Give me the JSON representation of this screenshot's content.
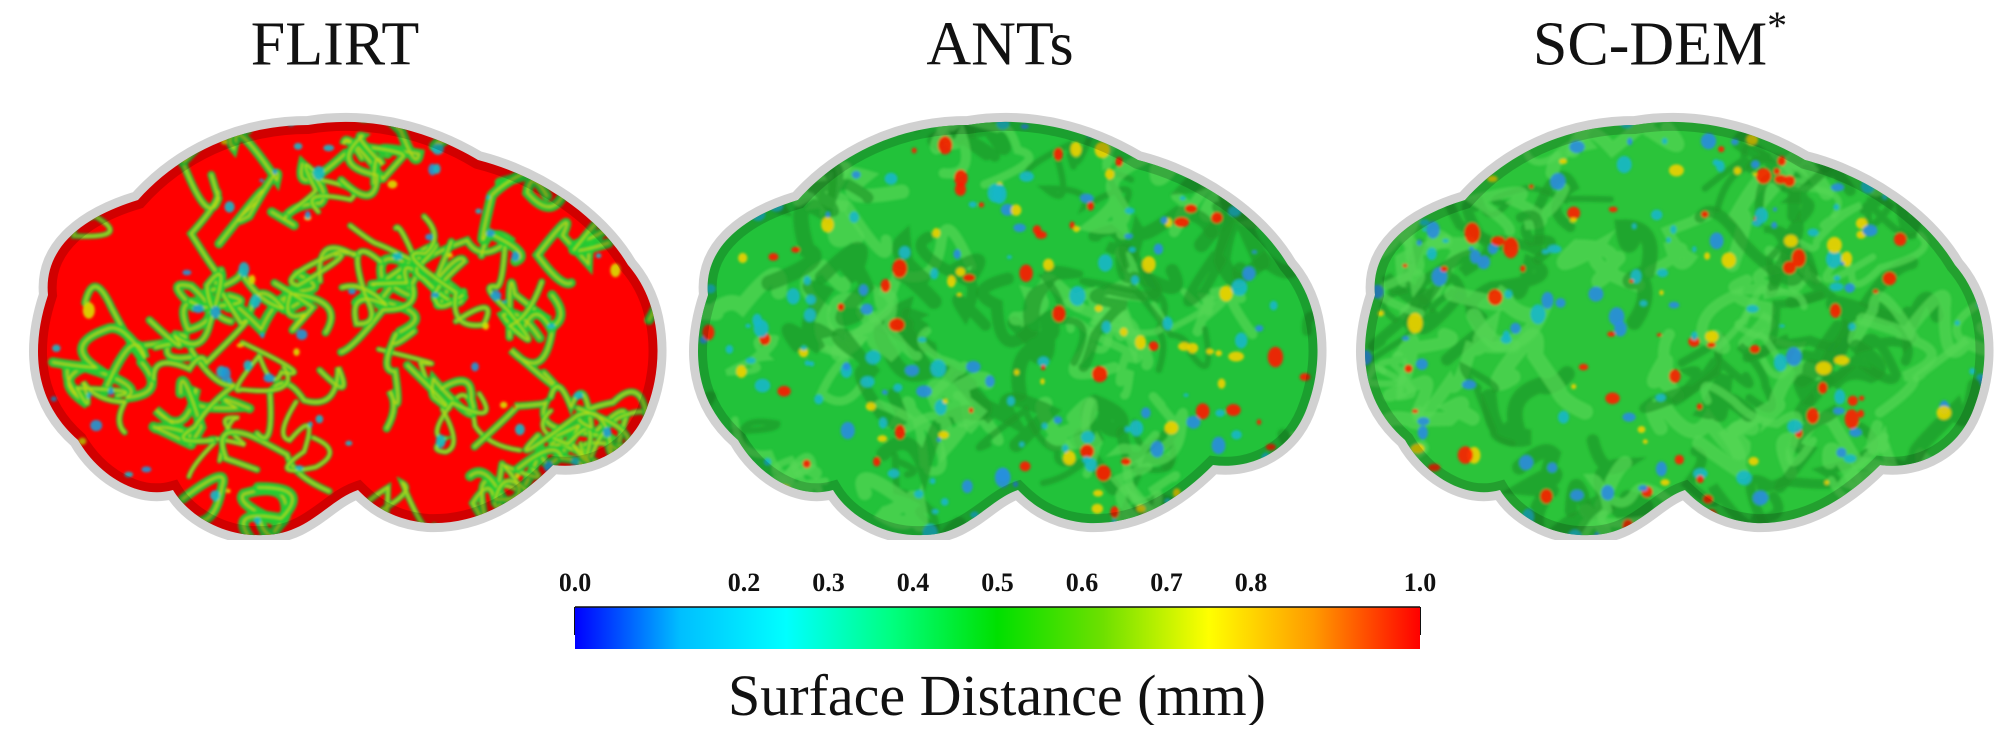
{
  "panels": [
    {
      "title": "FLIRT",
      "superscript": "",
      "surface_icon": "brain-surface-icon",
      "dominant_color": "#ff0000",
      "secondary_color": "#22cc33"
    },
    {
      "title": "ANTs",
      "superscript": "",
      "surface_icon": "brain-surface-icon",
      "dominant_color": "#22c23a",
      "secondary_color": "#ff1a00"
    },
    {
      "title": "SC-DEM",
      "superscript": "*",
      "surface_icon": "brain-surface-icon",
      "dominant_color": "#2bc43a",
      "secondary_color": "#ff2000"
    }
  ],
  "colorbar": {
    "label": "Surface Distance (mm)",
    "ticks": [
      "0.0",
      "0.2",
      "0.3",
      "0.4",
      "0.5",
      "0.6",
      "0.7",
      "0.8",
      "1.0"
    ],
    "tick_values": [
      0.0,
      0.2,
      0.3,
      0.4,
      0.5,
      0.6,
      0.7,
      0.8,
      1.0
    ],
    "min": 0.0,
    "max": 1.0,
    "colormap": [
      "#0000ff",
      "#00bfff",
      "#00ffff",
      "#00ff80",
      "#00e000",
      "#6ee000",
      "#ffff00",
      "#ff9900",
      "#ff0000"
    ]
  }
}
